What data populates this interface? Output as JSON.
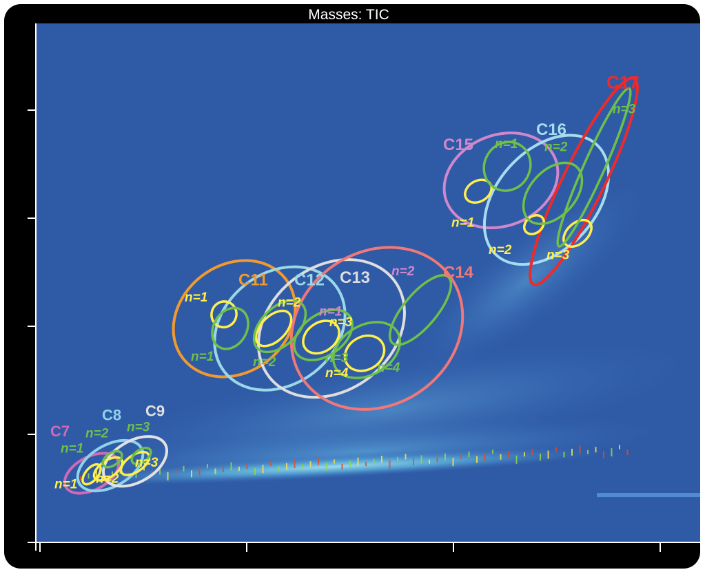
{
  "chart_data": {
    "type": "heatmap",
    "title": "Masses:  TIC",
    "xlabel": "",
    "ylabel": "",
    "xlim": [
      0,
      3.2
    ],
    "ylim": [
      0,
      4.1
    ],
    "x_ticks": [
      0,
      1,
      2,
      3
    ],
    "y_ticks": [
      0,
      1,
      2,
      3,
      4
    ],
    "grid": false,
    "colors": {
      "background": "#2f5aa6",
      "frame": "#000000",
      "C7": "#d06ab8",
      "C8": "#8fd3ea",
      "C9": "#e2e2e2",
      "C11": "#f39a2c",
      "C12": "#9ad8e8",
      "C13": "#dedede",
      "C14": "#f07878",
      "C15": "#d088cc",
      "C16": "#a6dcef",
      "C17": "#ee2a2a",
      "n1": "#ffef4a",
      "n2": "#6fc04a",
      "n3": "#ffef4a",
      "n4": "#6fc04a"
    },
    "groups": [
      {
        "label": "C7",
        "lx": 0.05,
        "ly": 0.98,
        "size": 22,
        "color": "#d06ab8",
        "cx": 0.25,
        "cy": 0.64,
        "rx": 0.08,
        "ry": 0.27,
        "rot": 62
      },
      {
        "label": "C8",
        "lx": 0.3,
        "ly": 1.13,
        "size": 22,
        "color": "#8fd3ea",
        "cx": 0.34,
        "cy": 0.71,
        "rx": 0.1,
        "ry": 0.33,
        "rot": 60
      },
      {
        "label": "C9",
        "lx": 0.51,
        "ly": 1.17,
        "size": 22,
        "color": "#e2e2e2",
        "cx": 0.46,
        "cy": 0.75,
        "rx": 0.1,
        "ry": 0.32,
        "rot": 60
      },
      {
        "label": "C11",
        "lx": 0.96,
        "ly": 2.38,
        "size": 24,
        "color": "#f39a2c",
        "cx": 0.94,
        "cy": 2.07,
        "rx": 0.26,
        "ry": 0.6,
        "rot": 52
      },
      {
        "label": "C12",
        "lx": 1.23,
        "ly": 2.38,
        "size": 24,
        "color": "#9ad8e8",
        "cx": 1.16,
        "cy": 1.98,
        "rx": 0.27,
        "ry": 0.65,
        "rot": 52
      },
      {
        "label": "C13",
        "lx": 1.45,
        "ly": 2.4,
        "size": 24,
        "color": "#dedede",
        "cx": 1.41,
        "cy": 1.98,
        "rx": 0.3,
        "ry": 0.73,
        "rot": 52
      },
      {
        "label": "C14",
        "lx": 1.95,
        "ly": 2.45,
        "size": 24,
        "color": "#f07878",
        "cx": 1.63,
        "cy": 1.98,
        "rx": 0.37,
        "ry": 0.83,
        "rot": 55
      },
      {
        "label": "C15",
        "lx": 1.95,
        "ly": 3.63,
        "size": 24,
        "color": "#d088cc",
        "cx": 2.23,
        "cy": 3.35,
        "rx": 0.22,
        "ry": 0.54,
        "rot": 68
      },
      {
        "label": "C16",
        "lx": 2.4,
        "ly": 3.77,
        "size": 24,
        "color": "#a6dcef",
        "cx": 2.45,
        "cy": 3.17,
        "rx": 0.24,
        "ry": 0.69,
        "rot": 42
      },
      {
        "label": "C17",
        "lx": 2.74,
        "ly": 4.2,
        "size": 26,
        "color": "#ee2a2a",
        "cx": 2.63,
        "cy": 3.34,
        "rx": 0.1,
        "ry": 1.06,
        "rot": 26
      }
    ],
    "inner_contours": [
      {
        "cx": 0.25,
        "cy": 0.63,
        "rx": 0.03,
        "ry": 0.11,
        "rot": 40,
        "color": "#ffef4a"
      },
      {
        "cx": 0.33,
        "cy": 0.68,
        "rx": 0.04,
        "ry": 0.15,
        "rot": 55,
        "color": "#ffef4a"
      },
      {
        "cx": 0.35,
        "cy": 0.77,
        "rx": 0.03,
        "ry": 0.1,
        "rot": 55,
        "color": "#6fc04a"
      },
      {
        "cx": 0.46,
        "cy": 0.73,
        "rx": 0.04,
        "ry": 0.15,
        "rot": 55,
        "color": "#ffef4a"
      },
      {
        "cx": 0.49,
        "cy": 0.8,
        "rx": 0.03,
        "ry": 0.1,
        "rot": 55,
        "color": "#6fc04a"
      },
      {
        "cx": 0.89,
        "cy": 2.11,
        "rx": 0.06,
        "ry": 0.12,
        "rot": 20,
        "color": "#ffef4a"
      },
      {
        "cx": 0.92,
        "cy": 1.98,
        "rx": 0.08,
        "ry": 0.2,
        "rot": 30,
        "color": "#6fc04a"
      },
      {
        "cx": 1.13,
        "cy": 1.98,
        "rx": 0.06,
        "ry": 0.2,
        "rot": 45,
        "color": "#ffef4a"
      },
      {
        "cx": 1.16,
        "cy": 2.0,
        "rx": 0.09,
        "ry": 0.29,
        "rot": 45,
        "color": "#6fc04a"
      },
      {
        "cx": 1.36,
        "cy": 1.9,
        "rx": 0.07,
        "ry": 0.18,
        "rot": 55,
        "color": "#ffef4a"
      },
      {
        "cx": 1.37,
        "cy": 1.92,
        "rx": 0.1,
        "ry": 0.3,
        "rot": 55,
        "color": "#6fc04a"
      },
      {
        "cx": 1.57,
        "cy": 1.75,
        "rx": 0.08,
        "ry": 0.19,
        "rot": 60,
        "color": "#ffef4a"
      },
      {
        "cx": 1.58,
        "cy": 1.78,
        "rx": 0.12,
        "ry": 0.33,
        "rot": 60,
        "color": "#6fc04a"
      },
      {
        "cx": 1.84,
        "cy": 2.15,
        "rx": 0.08,
        "ry": 0.4,
        "rot": 40,
        "color": "#6fc04a"
      },
      {
        "cx": 2.12,
        "cy": 3.25,
        "rx": 0.05,
        "ry": 0.13,
        "rot": 60,
        "color": "#ffef4a"
      },
      {
        "cx": 2.26,
        "cy": 3.48,
        "rx": 0.11,
        "ry": 0.23,
        "rot": 30,
        "color": "#6fc04a"
      },
      {
        "cx": 2.39,
        "cy": 2.94,
        "rx": 0.04,
        "ry": 0.1,
        "rot": 50,
        "color": "#ffef4a"
      },
      {
        "cx": 2.48,
        "cy": 3.23,
        "rx": 0.11,
        "ry": 0.33,
        "rot": 42,
        "color": "#6fc04a"
      },
      {
        "cx": 2.6,
        "cy": 2.86,
        "rx": 0.05,
        "ry": 0.15,
        "rot": 48,
        "color": "#ffef4a"
      },
      {
        "cx": 2.68,
        "cy": 3.47,
        "rx": 0.05,
        "ry": 0.8,
        "rot": 24,
        "color": "#6fc04a"
      }
    ],
    "n_labels": [
      {
        "text": "n=1",
        "x": 0.07,
        "y": 0.5,
        "color": "#ffef4a"
      },
      {
        "text": "n=1",
        "x": 0.1,
        "y": 0.83,
        "color": "#6fc04a"
      },
      {
        "text": "n=2",
        "x": 0.22,
        "y": 0.97,
        "color": "#6fc04a"
      },
      {
        "text": "n=2",
        "x": 0.27,
        "y": 0.55,
        "color": "#ffef4a"
      },
      {
        "text": "n=3",
        "x": 0.42,
        "y": 1.03,
        "color": "#6fc04a"
      },
      {
        "text": "n=3",
        "x": 0.46,
        "y": 0.7,
        "color": "#ffef4a"
      },
      {
        "text": "n=1",
        "x": 0.7,
        "y": 2.23,
        "color": "#ffef4a"
      },
      {
        "text": "n=1",
        "x": 0.73,
        "y": 1.68,
        "color": "#6fc04a"
      },
      {
        "text": "n=2",
        "x": 1.15,
        "y": 2.18,
        "color": "#ffef4a"
      },
      {
        "text": "n=2",
        "x": 1.03,
        "y": 1.63,
        "color": "#6fc04a"
      },
      {
        "text": "n=1",
        "x": 1.35,
        "y": 2.1,
        "color": "#d088cc"
      },
      {
        "text": "n=3",
        "x": 1.38,
        "y": 1.67,
        "color": "#6fc04a"
      },
      {
        "text": "n=3",
        "x": 1.4,
        "y": 2.0,
        "color": "#ffef4a"
      },
      {
        "text": "n=4",
        "x": 1.38,
        "y": 1.53,
        "color": "#ffef4a"
      },
      {
        "text": "n=4",
        "x": 1.63,
        "y": 1.58,
        "color": "#6fc04a"
      },
      {
        "text": "n=2",
        "x": 1.7,
        "y": 2.47,
        "color": "#d088cc"
      },
      {
        "text": "n=1",
        "x": 2.2,
        "y": 3.65,
        "color": "#6fc04a"
      },
      {
        "text": "n=1",
        "x": 1.99,
        "y": 2.92,
        "color": "#ffef4a"
      },
      {
        "text": "n=2",
        "x": 2.44,
        "y": 3.62,
        "color": "#6fc04a"
      },
      {
        "text": "n=2",
        "x": 2.17,
        "y": 2.67,
        "color": "#ffef4a"
      },
      {
        "text": "n=3",
        "x": 2.77,
        "y": 3.97,
        "color": "#6fc04a"
      },
      {
        "text": "n=3",
        "x": 2.45,
        "y": 2.62,
        "color": "#ffef4a"
      }
    ]
  }
}
